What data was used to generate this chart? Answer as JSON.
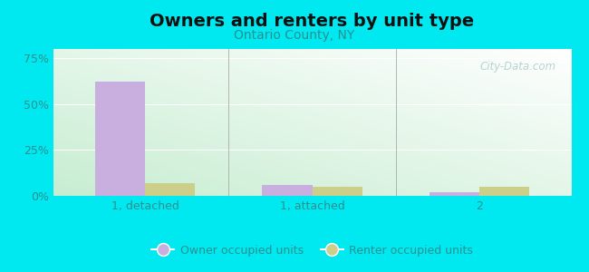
{
  "title": "Owners and renters by unit type",
  "subtitle": "Ontario County, NY",
  "categories": [
    "1, detached",
    "1, attached",
    "2"
  ],
  "owner_values": [
    62,
    6,
    2
  ],
  "renter_values": [
    7,
    5,
    5
  ],
  "owner_color": "#c9aee0",
  "renter_color": "#cccf8a",
  "background_color": "#00e8f0",
  "title_fontsize": 14,
  "subtitle_fontsize": 10,
  "tick_color": "#2a9090",
  "label_color": "#2a9090",
  "yticks": [
    0,
    25,
    50,
    75
  ],
  "ylim": [
    0,
    80
  ],
  "bar_width": 0.3,
  "watermark": "City-Data.com",
  "legend_owner": "Owner occupied units",
  "legend_renter": "Renter occupied units"
}
